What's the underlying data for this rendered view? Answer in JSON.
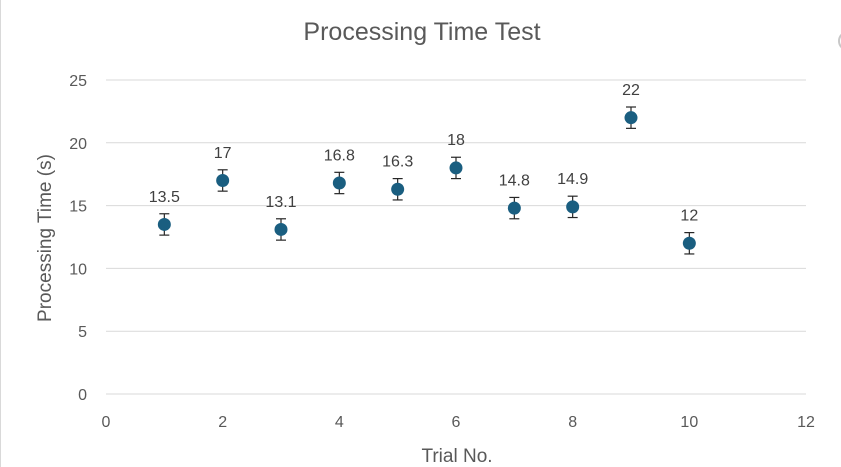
{
  "chart_data": {
    "type": "scatter",
    "title": "Processing Time Test",
    "xlabel": "Trial No.",
    "ylabel": "Processing Time (s)",
    "xlim": [
      0,
      12
    ],
    "ylim": [
      0,
      25
    ],
    "xticks": [
      0,
      2,
      4,
      6,
      8,
      10,
      12
    ],
    "yticks": [
      0,
      5,
      10,
      15,
      20,
      25
    ],
    "grid": {
      "horizontal": true,
      "vertical": false
    },
    "legend": "none",
    "marker_color": "#1a5e80",
    "error_bar_half_width": 0.85,
    "series": [
      {
        "x": [
          1,
          2,
          3,
          4,
          5,
          6,
          7,
          8,
          9,
          10
        ],
        "y": [
          13.5,
          17,
          13.1,
          16.8,
          16.3,
          18,
          14.8,
          14.9,
          22,
          12
        ],
        "data_labels": [
          "13.5",
          "17",
          "13.1",
          "16.8",
          "16.3",
          "18",
          "14.8",
          "14.9",
          "22",
          "12"
        ]
      }
    ]
  }
}
